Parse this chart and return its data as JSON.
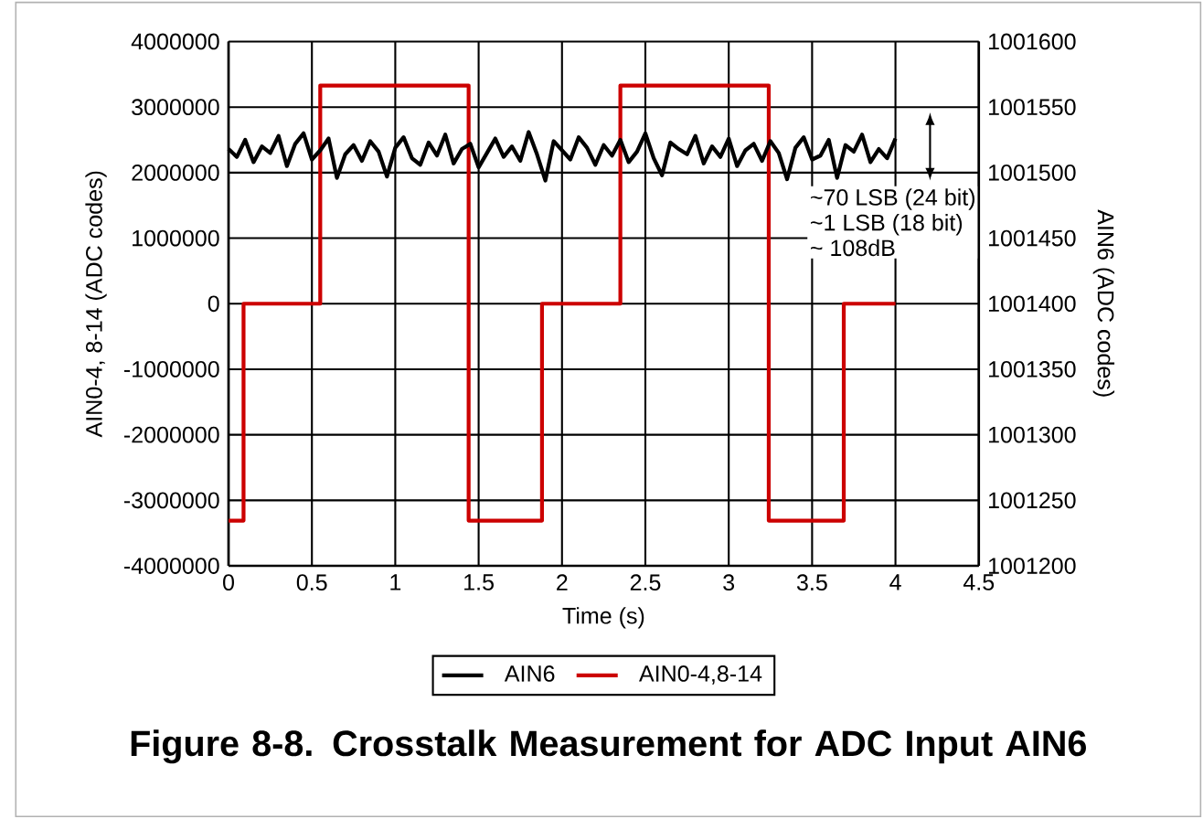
{
  "chart_data": {
    "type": "line",
    "title": "Figure 8-8. Crosstalk Measurement for ADC Input AIN6",
    "xlabel": "Time (s)",
    "ylabel": "AIN0-4, 8-14 (ADC codes)",
    "y2label": "AIN6 (ADC codes)",
    "annotations": [
      "~70 LSB (24 bit)",
      "~1 LSB (18 bit)",
      "~ 108dB"
    ],
    "series": [
      {
        "name": "AIN6",
        "axis": "y2",
        "color": "#000000",
        "x": [
          0,
          0.05,
          0.1,
          0.15,
          0.2,
          0.25,
          0.3,
          0.35,
          0.4,
          0.45,
          0.5,
          0.55,
          0.6,
          0.65,
          0.7,
          0.75,
          0.8,
          0.85,
          0.9,
          0.95,
          1,
          1.05,
          1.1,
          1.15,
          1.2,
          1.25,
          1.3,
          1.35,
          1.4,
          1.45,
          1.5,
          1.55,
          1.6,
          1.65,
          1.7,
          1.75,
          1.8,
          1.85,
          1.9,
          1.95,
          2,
          2.05,
          2.1,
          2.15,
          2.2,
          2.25,
          2.3,
          2.35,
          2.4,
          2.45,
          2.5,
          2.55,
          2.6,
          2.65,
          2.7,
          2.75,
          2.8,
          2.85,
          2.9,
          2.95,
          3,
          3.05,
          3.1,
          3.15,
          3.2,
          3.25,
          3.3,
          3.35,
          3.4,
          3.45,
          3.5,
          3.55,
          3.6,
          3.65,
          3.7,
          3.75,
          3.8,
          3.85,
          3.9,
          3.95,
          4
        ],
        "values": [
          1001518,
          1001512,
          1001525,
          1001508,
          1001520,
          1001515,
          1001528,
          1001505,
          1001522,
          1001530,
          1001510,
          1001517,
          1001526,
          1001496,
          1001514,
          1001521,
          1001509,
          1001524,
          1001516,
          1001497,
          1001519,
          1001527,
          1001511,
          1001506,
          1001523,
          1001513,
          1001529,
          1001507,
          1001518,
          1001522,
          1001504,
          1001515,
          1001526,
          1001512,
          1001520,
          1001509,
          1001531,
          1001514,
          1001494,
          1001524,
          1001517,
          1001510,
          1001527,
          1001519,
          1001506,
          1001521,
          1001513,
          1001525,
          1001508,
          1001516,
          1001530,
          1001511,
          1001498,
          1001523,
          1001518,
          1001514,
          1001528,
          1001507,
          1001520,
          1001512,
          1001526,
          1001505,
          1001517,
          1001522,
          1001509,
          1001524,
          1001515,
          1001495,
          1001519,
          1001527,
          1001510,
          1001513,
          1001525,
          1001496,
          1001521,
          1001516,
          1001529,
          1001508,
          1001518,
          1001511,
          1001526
        ]
      },
      {
        "name": "AIN0-4,8-14",
        "type": "step",
        "color": "#cc0000",
        "x": [
          0,
          0.09,
          0.55,
          1.44,
          1.88,
          2.35,
          3.24,
          3.69,
          4
        ],
        "values": [
          -3310000,
          0,
          3330000,
          -3310000,
          0,
          3330000,
          -3310000,
          0,
          0
        ]
      }
    ],
    "xlim": [
      0,
      4.5
    ],
    "xticks": [
      0,
      0.5,
      1,
      1.5,
      2,
      2.5,
      3,
      3.5,
      4,
      4.5
    ],
    "ylim": [
      -4000000,
      4000000
    ],
    "yticks": [
      -4000000,
      -3000000,
      -2000000,
      -1000000,
      0,
      1000000,
      2000000,
      3000000,
      4000000
    ],
    "y2lim": [
      1001200,
      1001600
    ],
    "y2ticks": [
      1001200,
      1001250,
      1001300,
      1001350,
      1001400,
      1001450,
      1001500,
      1001550,
      1001600
    ],
    "grid": true,
    "legend": "bottom",
    "line_style": "solid",
    "marker": "none"
  }
}
